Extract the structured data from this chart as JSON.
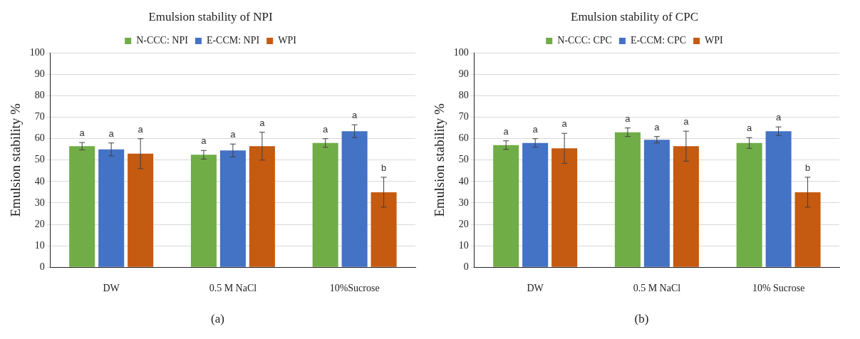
{
  "chart_data": [
    {
      "type": "bar",
      "title": "Emulsion stability of NPI",
      "ylabel": "Emulsion stability %",
      "categories": [
        "DW",
        "0.5 M NaCl",
        "10%Sucrose"
      ],
      "ylim": [
        0,
        100
      ],
      "yticks": [
        0,
        10,
        20,
        30,
        40,
        50,
        60,
        70,
        80,
        90,
        100
      ],
      "grid": "y",
      "legend": "top",
      "annotations": [
        "(a)"
      ],
      "series": [
        {
          "name": "N-CCC: NPI",
          "color": "#70ad47",
          "values": [
            56.5,
            52.5,
            58
          ],
          "errors": [
            1.7,
            2,
            2
          ],
          "value_labels": [
            "a",
            "a",
            "a"
          ]
        },
        {
          "name": "E-CCM: NPI",
          "color": "#4472c4",
          "values": [
            55,
            54.5,
            63.5
          ],
          "errors": [
            3,
            3,
            3
          ],
          "value_labels": [
            "a",
            "a",
            "a"
          ]
        },
        {
          "name": "WPI",
          "color": "#c55a11",
          "values": [
            53,
            56.5,
            35
          ],
          "errors": [
            7,
            6.5,
            7
          ],
          "value_labels": [
            "a",
            "a",
            "b"
          ]
        }
      ]
    },
    {
      "type": "bar",
      "title": "Emulsion stability of CPC",
      "ylabel": "Emulsion stability %",
      "categories": [
        "DW",
        "0.5 M NaCl",
        "10% Sucrose"
      ],
      "ylim": [
        0,
        100
      ],
      "yticks": [
        0,
        10,
        20,
        30,
        40,
        50,
        60,
        70,
        80,
        90,
        100
      ],
      "grid": "y",
      "legend": "top",
      "annotations": [
        "(b)"
      ],
      "series": [
        {
          "name": "N-CCC: CPC",
          "color": "#70ad47",
          "values": [
            57,
            63,
            58
          ],
          "errors": [
            2,
            2,
            2.5
          ],
          "value_labels": [
            "a",
            "a",
            "a"
          ]
        },
        {
          "name": "E-CCM: CPC",
          "color": "#4472c4",
          "values": [
            58,
            59.5,
            63.5
          ],
          "errors": [
            2,
            1.5,
            2
          ],
          "value_labels": [
            "a",
            "a",
            "a"
          ]
        },
        {
          "name": "WPI",
          "color": "#c55a11",
          "values": [
            55.5,
            56.5,
            35
          ],
          "errors": [
            7,
            7,
            7
          ],
          "value_labels": [
            "a",
            "a",
            "b"
          ]
        }
      ]
    }
  ]
}
